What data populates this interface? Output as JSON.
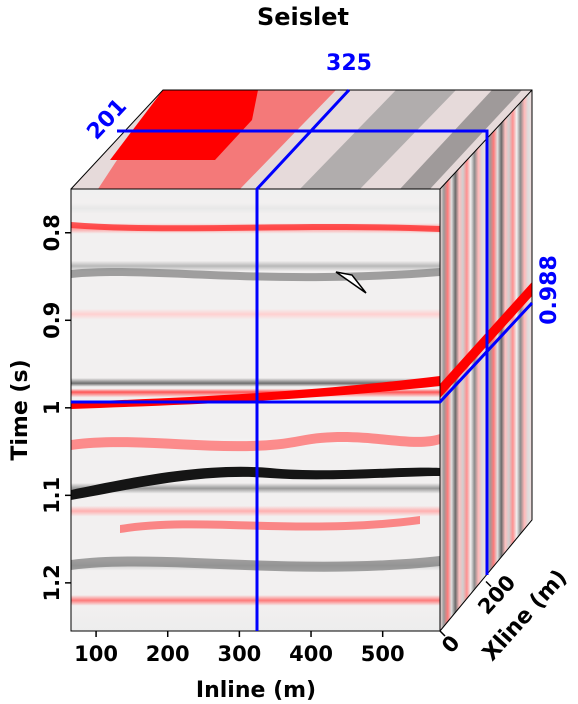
{
  "chart_data": {
    "type": "heatmap",
    "title": "Seislet",
    "xlabel": "Inline (m)",
    "ylabel": "Time (s)",
    "zlabel": "Xline (m)",
    "x_ticks": [
      100,
      200,
      300,
      400,
      500
    ],
    "y_ticks": [
      "0.8",
      "0.9",
      "1",
      "1.1",
      "1.2"
    ],
    "z_ticks": [
      0,
      200
    ],
    "xlim": [
      65,
      580
    ],
    "ylim": [
      0.75,
      1.255
    ],
    "zlim": [
      0,
      400
    ],
    "slice_inline": 325,
    "slice_xline": 201,
    "slice_time": 0.988,
    "slice_inline_label": "325",
    "slice_xline_label": "201",
    "slice_time_label": "0.988",
    "reflectors_time_s": [
      0.772,
      0.795,
      0.838,
      0.893,
      0.972,
      0.982,
      1.04,
      1.092,
      1.118,
      1.18,
      1.22
    ],
    "colormap": [
      "#000000",
      "#ffffff",
      "#ff0000"
    ],
    "line_color": "#0000ff"
  }
}
